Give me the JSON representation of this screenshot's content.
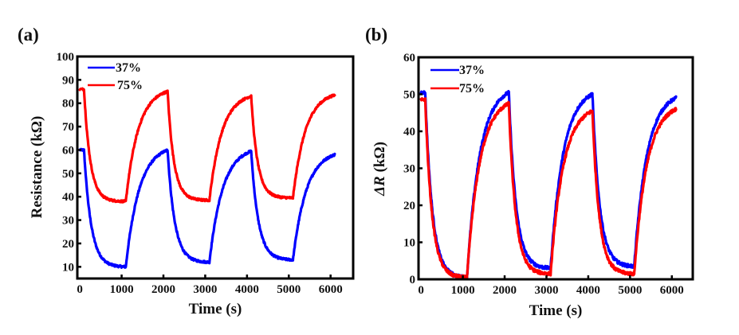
{
  "chart_data": [
    {
      "id": "a",
      "panel_label": "(a)",
      "type": "line",
      "title": "",
      "xlabel": "Time (s)",
      "ylabel": "Resistance (kΩ)",
      "ylabel_italic_prefix": "",
      "xlim": [
        -60,
        6540
      ],
      "ylim": [
        5,
        100
      ],
      "xticks": [
        0,
        1000,
        2000,
        3000,
        4000,
        5000,
        6000
      ],
      "yticks": [
        10,
        20,
        30,
        40,
        50,
        60,
        70,
        80,
        90,
        100
      ],
      "grid": false,
      "legend_position": "top-left",
      "switch_times": [
        0,
        100,
        1100,
        2100,
        3100,
        4100,
        5100,
        6100
      ],
      "series": [
        {
          "name": "37%",
          "color": "#0000ff",
          "start_value": 60,
          "levels": [
            10,
            60,
            12,
            59.5,
            13,
            58
          ],
          "decay_tau_s": 170,
          "rise_tau_s": 320
        },
        {
          "name": "75%",
          "color": "#ff0000",
          "start_value": 86,
          "levels": [
            38,
            85,
            38.5,
            83,
            39.5,
            83.5
          ],
          "decay_tau_s": 150,
          "rise_tau_s": 300
        }
      ]
    },
    {
      "id": "b",
      "panel_label": "(b)",
      "type": "line",
      "title": "",
      "xlabel": "Time (s)",
      "ylabel": "R (kΩ)",
      "ylabel_italic_prefix": "Δ",
      "xlim": [
        -60,
        6500
      ],
      "ylim": [
        0,
        60
      ],
      "xticks": [
        0,
        1000,
        2000,
        3000,
        4000,
        5000,
        6000
      ],
      "yticks": [
        0,
        10,
        20,
        30,
        40,
        50,
        60
      ],
      "grid": false,
      "legend_position": "top-left",
      "switch_times": [
        0,
        100,
        1100,
        2100,
        3100,
        4100,
        5100,
        6100
      ],
      "series": [
        {
          "name": "37%",
          "color": "#0000ff",
          "start_value": 50.5,
          "levels": [
            0.5,
            50.5,
            3,
            50,
            3.5,
            49
          ],
          "decay_tau_s": 170,
          "rise_tau_s": 300
        },
        {
          "name": "75%",
          "color": "#ff0000",
          "start_value": 48.5,
          "levels": [
            0.5,
            47.5,
            1.5,
            45.5,
            1.5,
            46
          ],
          "decay_tau_s": 160,
          "rise_tau_s": 300
        }
      ]
    }
  ]
}
